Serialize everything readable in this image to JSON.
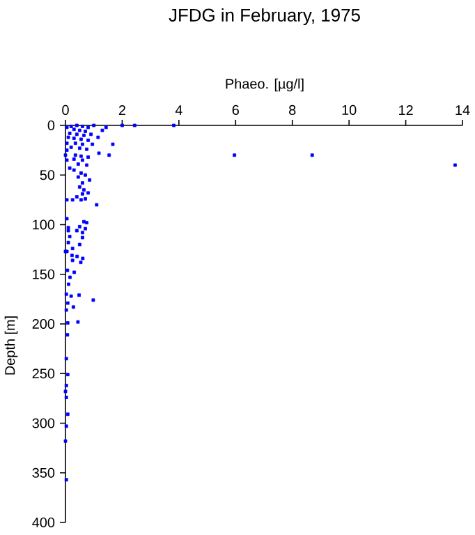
{
  "chart_data": {
    "type": "scatter",
    "title": "JFDG in February, 1975",
    "xlabel": "Phaeo. [µg/l]",
    "ylabel": "Depth [m]",
    "xlim": [
      0,
      14
    ],
    "ylim": [
      400,
      0
    ],
    "xticks": [
      0,
      2,
      4,
      6,
      8,
      10,
      12,
      14
    ],
    "yticks": [
      0,
      50,
      100,
      150,
      200,
      250,
      300,
      350,
      400
    ],
    "marker": "square",
    "series": [
      {
        "color": "#0000ff",
        "x": [
          2.0,
          2.44,
          3.82,
          1.43,
          1.3,
          1.15,
          1.67,
          1.54,
          1.18,
          5.96,
          8.7,
          13.74,
          0.05,
          0.2,
          0.4,
          0.6,
          0.8,
          1.0,
          0.3,
          0.5,
          0.7,
          0.15,
          0.4,
          0.65,
          0.9,
          0.1,
          0.3,
          0.55,
          0.8,
          0.05,
          0.35,
          0.6,
          0.95,
          0.2,
          0.5,
          0.75,
          0.05,
          0.35,
          0.55,
          0.8,
          0.0,
          0.3,
          0.6,
          0.05,
          0.45,
          0.75,
          0.15,
          0.3,
          0.55,
          0.7,
          0.45,
          0.85,
          0.6,
          0.5,
          0.65,
          0.6,
          0.8,
          0.4,
          0.7,
          0.55,
          0.05,
          0.25,
          1.1,
          0.05,
          0.65,
          0.75,
          0.1,
          0.5,
          0.7,
          0.1,
          0.4,
          0.6,
          0.15,
          0.6,
          0.1,
          0.5,
          0.25,
          0.05,
          0.0,
          0.23,
          0.41,
          0.61,
          0.54,
          0.25,
          0.07,
          0.31,
          0.11,
          0.16,
          0.03,
          0.2,
          0.48,
          0.98,
          0.08,
          0.28,
          0.03,
          0.44,
          0.08,
          0.07,
          0.03,
          0.08,
          0.03,
          0.0,
          0.03,
          0.08,
          0.03,
          0.0,
          0.03
        ],
        "values": [
          0,
          0,
          0,
          2,
          5,
          12,
          19,
          30,
          28,
          30,
          30,
          40,
          2,
          1,
          0,
          1,
          2,
          0,
          4,
          5,
          6,
          8,
          9,
          10,
          9,
          12,
          13,
          14,
          15,
          18,
          18,
          19,
          19,
          22,
          23,
          24,
          25,
          30,
          31,
          32,
          30,
          34,
          35,
          35,
          39,
          40,
          43,
          45,
          48,
          50,
          52,
          55,
          58,
          62,
          65,
          69,
          68,
          72,
          74,
          75,
          75,
          75,
          80,
          94,
          97,
          98,
          103,
          102,
          104,
          106,
          106,
          108,
          112,
          113,
          118,
          120,
          124,
          127,
          127,
          131,
          132,
          134,
          138,
          136,
          146,
          148,
          160,
          153,
          170,
          172,
          171,
          176,
          179,
          183,
          186,
          198,
          199,
          211,
          235,
          251,
          262,
          268,
          274,
          291,
          303,
          318,
          357
        ]
      }
    ]
  }
}
